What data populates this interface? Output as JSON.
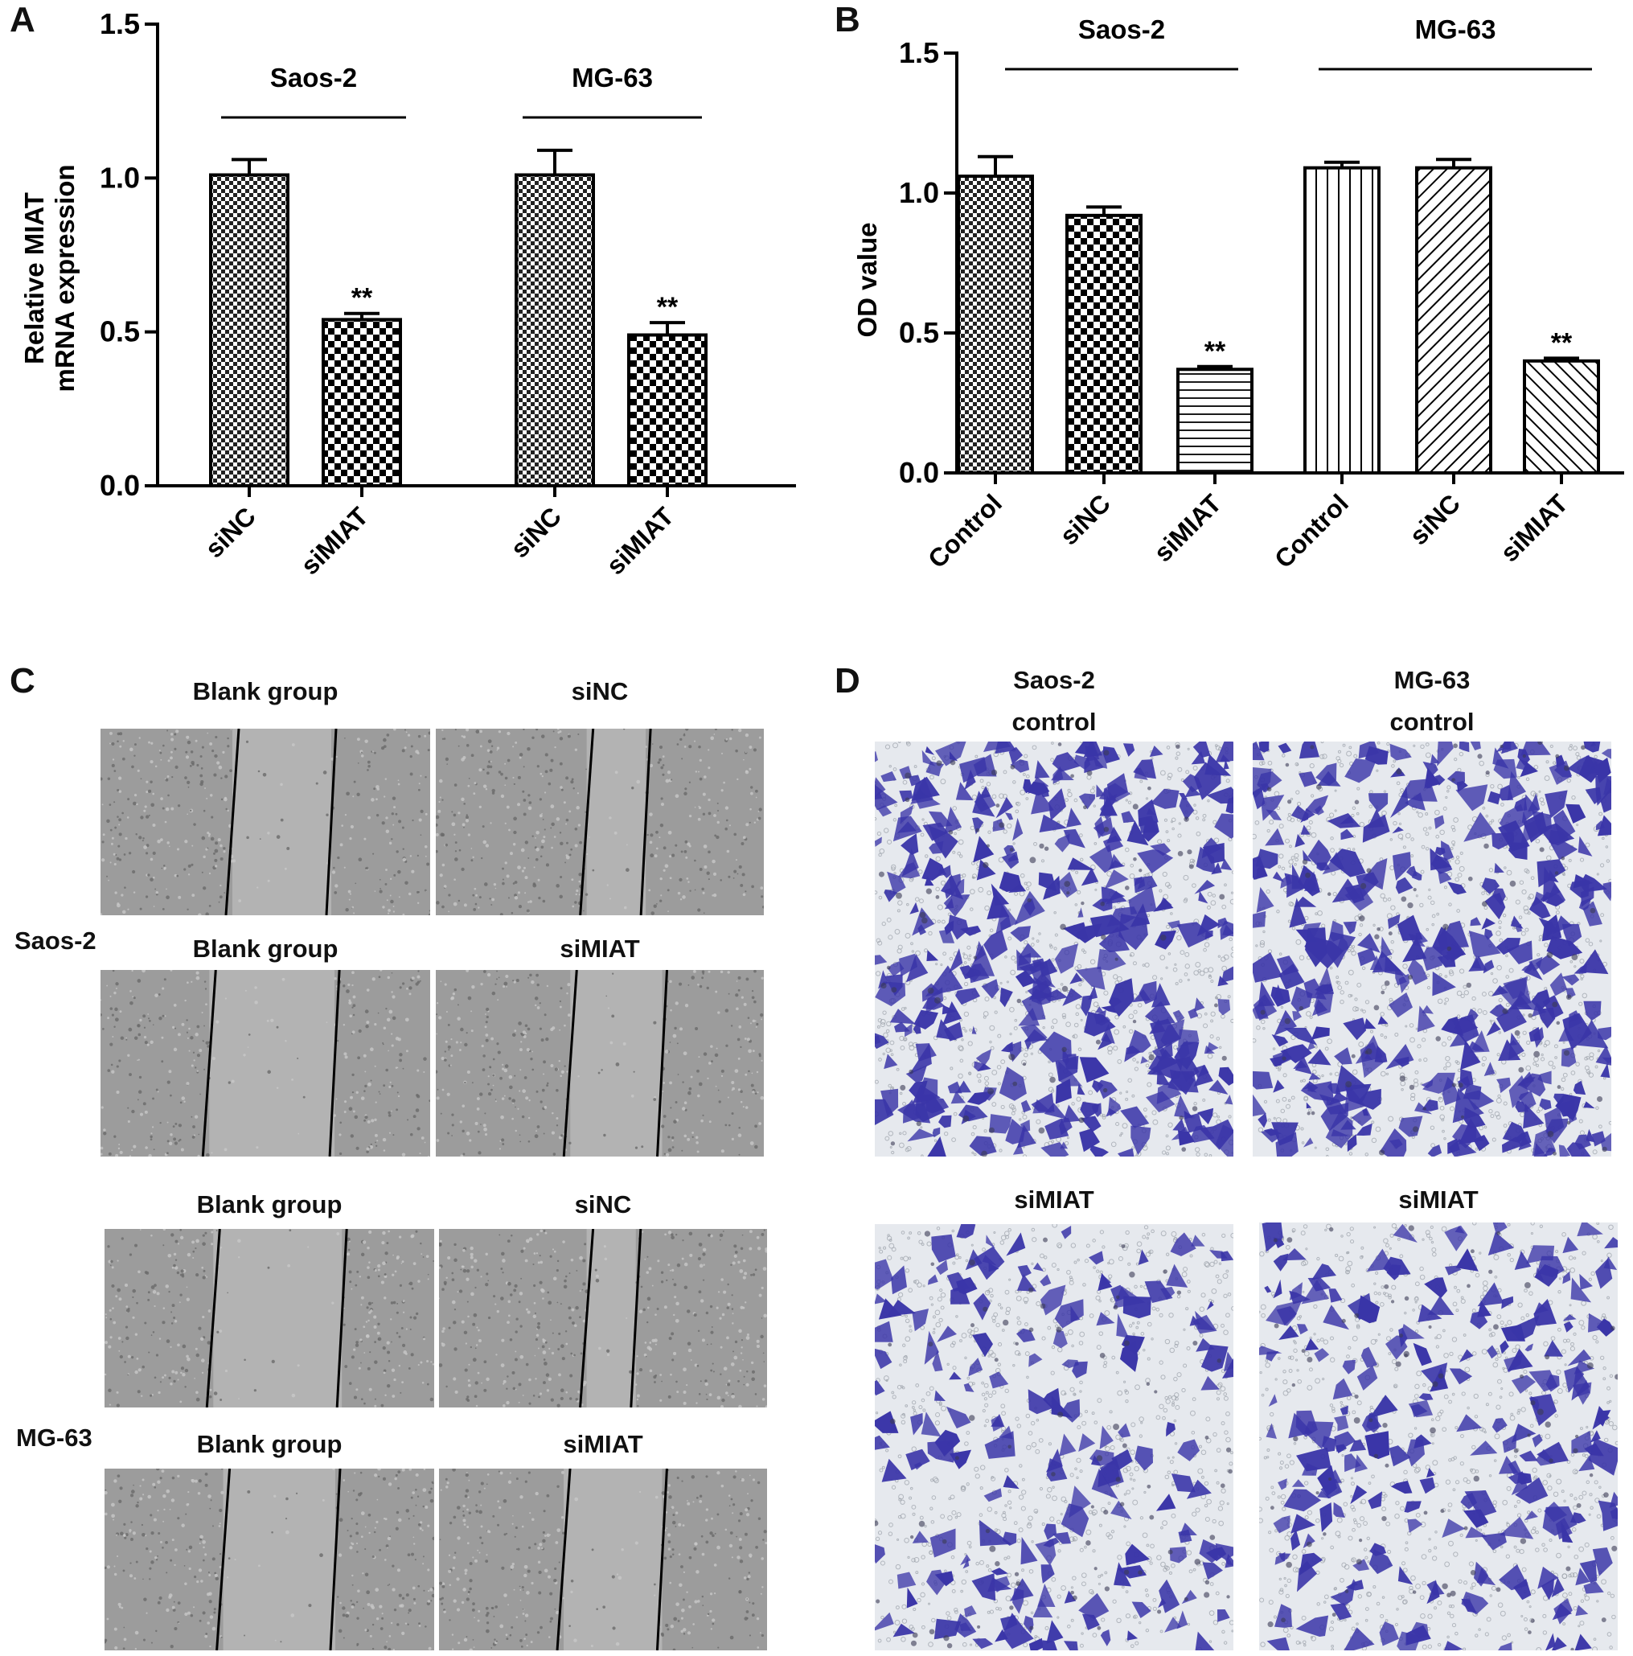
{
  "panels": {
    "A": {
      "letter": "A",
      "chart_data": {
        "type": "bar",
        "ylabel": "Relative MIAT\nmRNA expression",
        "ylim": [
          0,
          1.5
        ],
        "yticks": [
          "0.0",
          "0.5",
          "1.0",
          "1.5"
        ],
        "groups": [
          "Saos-2",
          "MG-63"
        ],
        "categories": [
          "siNC",
          "siMIAT",
          "siNC",
          "siMIAT"
        ],
        "values": [
          1.01,
          0.54,
          1.01,
          0.49
        ],
        "errors": [
          0.05,
          0.02,
          0.08,
          0.04
        ],
        "annotations": [
          "",
          "**",
          "",
          "**"
        ],
        "patterns": [
          "checker-fine",
          "checker-coarse",
          "checker-fine",
          "checker-coarse"
        ]
      }
    },
    "B": {
      "letter": "B",
      "chart_data": {
        "type": "bar",
        "ylabel": "OD value",
        "ylim": [
          0,
          1.5
        ],
        "yticks": [
          "0.0",
          "0.5",
          "1.0",
          "1.5"
        ],
        "groups": [
          "Saos-2",
          "MG-63"
        ],
        "categories": [
          "Control",
          "siNC",
          "siMIAT",
          "Control",
          "siNC",
          "siMIAT"
        ],
        "values": [
          1.06,
          0.92,
          0.37,
          1.09,
          1.09,
          0.4
        ],
        "errors": [
          0.07,
          0.03,
          0.01,
          0.02,
          0.03,
          0.01
        ],
        "annotations": [
          "",
          "",
          "**",
          "",
          "",
          "**"
        ],
        "patterns": [
          "checker-fine",
          "checker-coarse",
          "hlines",
          "vlines",
          "diag-right",
          "diag-left"
        ]
      }
    },
    "C": {
      "letter": "C",
      "rows": [
        {
          "label": "Saos-2",
          "images": [
            {
              "title": "Blank group"
            },
            {
              "title": "siNC"
            },
            {
              "title": "Blank group"
            },
            {
              "title": "siMIAT"
            }
          ]
        },
        {
          "label": "MG-63",
          "images": [
            {
              "title": "Blank group"
            },
            {
              "title": "siNC"
            },
            {
              "title": "Blank group"
            },
            {
              "title": "siMIAT"
            }
          ]
        }
      ]
    },
    "D": {
      "letter": "D",
      "titles": [
        {
          "line1": "Saos-2",
          "line2": "control"
        },
        {
          "line1": "MG-63",
          "line2": "control"
        },
        {
          "line1": "siMIAT",
          "line2": ""
        },
        {
          "line1": "siMIAT",
          "line2": ""
        }
      ]
    }
  },
  "colors": {
    "bar_stroke": "#000000",
    "scratch_bg": "#9c9c9c",
    "scratch_gap": "#b3b3b3",
    "cell_stain": "#3a35a8",
    "membrane_bg": "#e6e9ee"
  }
}
